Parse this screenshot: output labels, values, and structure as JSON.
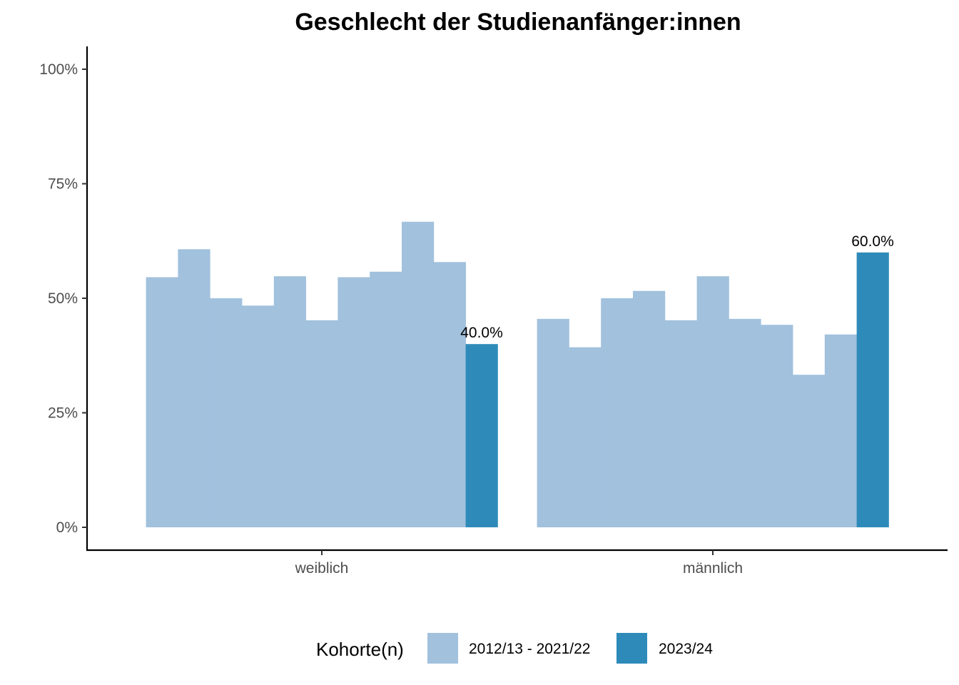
{
  "chart_data": {
    "type": "bar",
    "title": "Geschlecht der Studienanfänger:innen",
    "xlabel": "",
    "ylabel": "",
    "categories": [
      "weiblich",
      "männlich"
    ],
    "ylim": [
      0,
      1.05
    ],
    "y_ticks": [
      {
        "value": 0,
        "label": "0%"
      },
      {
        "value": 0.25,
        "label": "25%"
      },
      {
        "value": 0.5,
        "label": "50%"
      },
      {
        "value": 0.75,
        "label": "75%"
      },
      {
        "value": 1.0,
        "label": "100%"
      }
    ],
    "grid": false,
    "legend": {
      "title": "Kohorte(n)",
      "placement": "bottom",
      "entries": [
        {
          "label": "2012/13 - 2021/22",
          "color": "#a1c1dd"
        },
        {
          "label": "2023/24",
          "color": "#2e8bb9"
        }
      ]
    },
    "groups": [
      {
        "category": "weiblich",
        "historical": [
          0.546,
          0.607,
          0.5,
          0.484,
          0.548,
          0.452,
          0.546,
          0.558,
          0.667,
          0.579
        ],
        "current": 0.4,
        "current_label": "40.0%"
      },
      {
        "category": "männlich",
        "historical": [
          0.455,
          0.393,
          0.5,
          0.516,
          0.452,
          0.548,
          0.455,
          0.442,
          0.333,
          0.421
        ],
        "current": 0.6,
        "current_label": "60.0%"
      }
    ]
  }
}
